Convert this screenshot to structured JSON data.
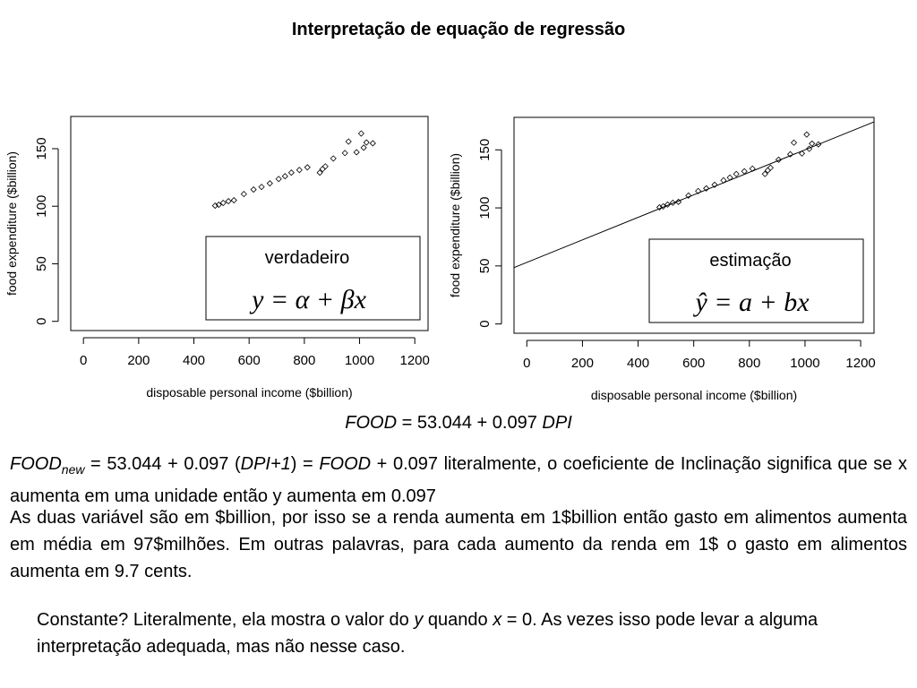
{
  "header": {
    "title": "Interpretação de equação de regressão"
  },
  "chart_data": [
    {
      "type": "scatter",
      "x": [
        477,
        490,
        506,
        525,
        545,
        581,
        616,
        645,
        675,
        707,
        730,
        753,
        782,
        811,
        856,
        866,
        876,
        905,
        947,
        960,
        989,
        1006,
        1015,
        1025,
        1048
      ],
      "y": [
        100.5,
        101.3,
        102.9,
        104.4,
        105.2,
        110.6,
        114.5,
        116.8,
        119.9,
        123.7,
        126.1,
        129.2,
        131.5,
        133.8,
        129.2,
        132.3,
        134.6,
        141.5,
        146.2,
        156.2,
        146.9,
        163.2,
        150.9,
        155.4,
        154.7
      ],
      "x_label": "disposable personal income ($billion)",
      "y_label": "food expenditure ($billion)",
      "xlim": [
        -46,
        1248
      ],
      "ylim": [
        -8,
        178
      ],
      "xticks": [
        0,
        200,
        400,
        600,
        800,
        1000,
        1200
      ],
      "yticks": [
        0,
        50,
        100,
        150
      ],
      "color": "#000000",
      "legend": {
        "title": "verdadeiro",
        "formula": "y = α + βx"
      }
    },
    {
      "type": "scatter",
      "x": [
        477,
        490,
        506,
        525,
        545,
        581,
        616,
        645,
        675,
        707,
        730,
        753,
        782,
        811,
        856,
        866,
        876,
        905,
        947,
        960,
        989,
        1006,
        1015,
        1025,
        1048
      ],
      "y": [
        100.5,
        101.3,
        102.9,
        104.4,
        105.2,
        110.6,
        114.5,
        116.8,
        119.9,
        123.7,
        126.1,
        129.2,
        131.5,
        133.8,
        129.2,
        132.3,
        134.6,
        141.5,
        146.2,
        156.2,
        146.9,
        163.2,
        150.9,
        155.4,
        154.7
      ],
      "x_label": "disposable personal income ($billion)",
      "y_label": "food expenditure ($billion)",
      "xlim": [
        -46,
        1248
      ],
      "ylim": [
        -8,
        178
      ],
      "xticks": [
        0,
        200,
        400,
        600,
        800,
        1000,
        1200
      ],
      "yticks": [
        0,
        50,
        100,
        150
      ],
      "color": "#000000",
      "regression": {
        "intercept": 53.044,
        "slope": 0.097
      },
      "legend": {
        "title": "estimação",
        "formula": "ŷ = a + bx"
      }
    }
  ],
  "equation": {
    "lhs": "FOOD",
    "middle": "= 53.044 + 0.097",
    "rhs": "DPI"
  },
  "paragraph1": {
    "a": "FOOD",
    "sub": "new",
    "b": " = 53.044 + 0.097 (",
    "c": "DPI+1",
    "d": ") = ",
    "e": "FOOD",
    "f": " + 0.097  literalmente, o coeficiente de Inclinação significa que se x aumenta em uma unidade então y aumenta em 0.097"
  },
  "paragraph2": "As duas variável são em $billion, por isso se a renda aumenta em 1$billion então gasto em alimentos aumenta em média em 97$milhões. Em outras palavras, para cada aumento da renda em 1$ o gasto em alimentos aumenta em 9.7 cents.",
  "paragraph3": {
    "a": "Constante? Literalmente, ela mostra o valor do ",
    "b": "y",
    "c": " quando ",
    "d": "x",
    "e": " = 0. As vezes isso pode levar a alguma interpretação adequada, mas não nesse caso."
  }
}
